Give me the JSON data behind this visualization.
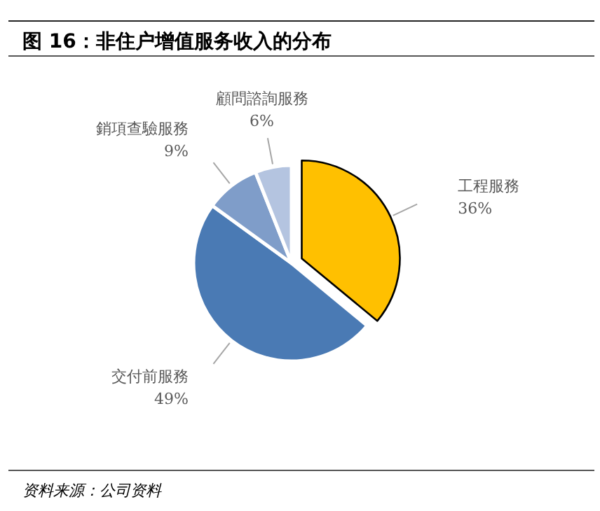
{
  "chart_data": {
    "type": "pie",
    "title": "图 16：非住户增值服务收入的分布",
    "categories": [
      "工程服務",
      "交付前服務",
      "銷項查驗服務",
      "顧問諮詢服務"
    ],
    "values": [
      36,
      49,
      9,
      6
    ],
    "colors": [
      "#ffc000",
      "#4a7ab4",
      "#7f9dc9",
      "#b4c4e0"
    ],
    "value_labels": [
      "36%",
      "49%",
      "9%",
      "6%"
    ],
    "annotations": [
      "资料来源：公司资料"
    ]
  }
}
